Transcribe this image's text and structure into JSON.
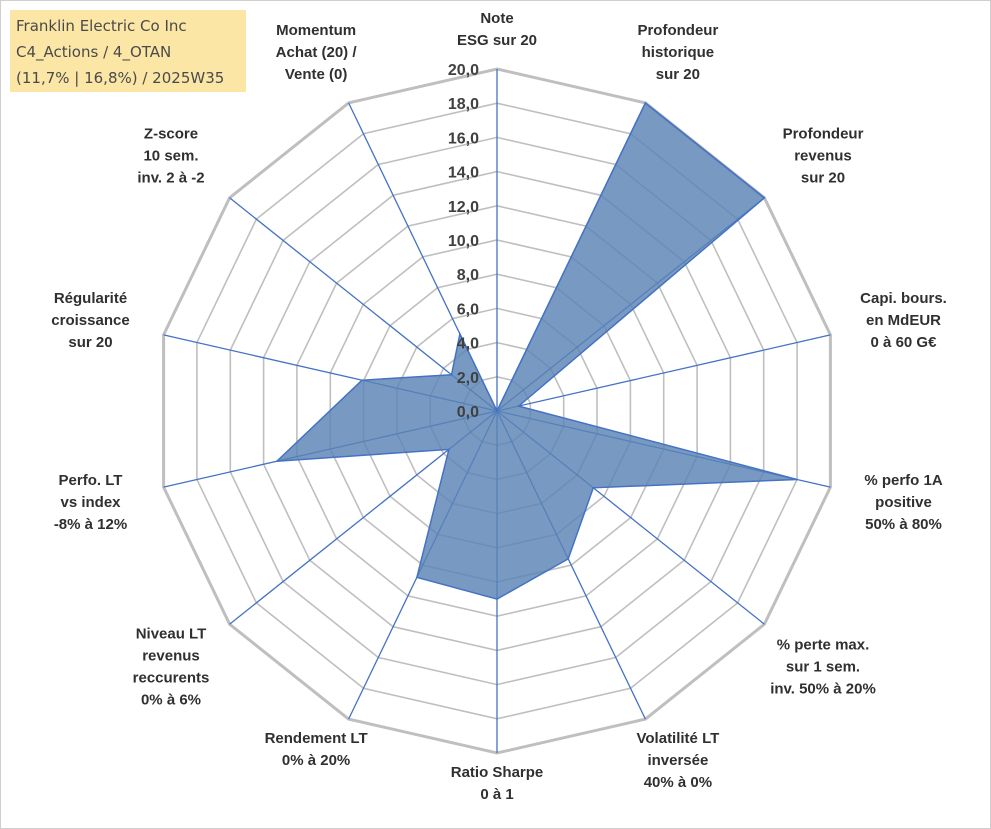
{
  "title_box": {
    "line1": "Franklin Electric Co Inc",
    "line2": "C4_Actions / 4_OTAN",
    "line3": "(11,7% | 16,8%) / 2025W35"
  },
  "chart_data": {
    "type": "radar",
    "rmin": 0,
    "rmax": 20,
    "grid": true,
    "fill_color": "#5a84b4",
    "line_color": "#4472c4",
    "grid_color": "#bfbfbf",
    "tick_labels": [
      "0,0",
      "2,0",
      "4,0",
      "6,0",
      "8,0",
      "10,0",
      "12,0",
      "14,0",
      "16,0",
      "18,0",
      "20,0"
    ],
    "axes": [
      [
        "Note",
        "ESG sur 20"
      ],
      [
        "Profondeur",
        "historique",
        "sur 20"
      ],
      [
        "Profondeur",
        "revenus",
        "sur 20"
      ],
      [
        "Capi. bours.",
        "en MdEUR",
        "0 à 60 G€"
      ],
      [
        "% perfo 1A",
        "positive",
        "50% à 80%"
      ],
      [
        "% perte max.",
        "sur 1 sem.",
        "inv. 50% à 20%"
      ],
      [
        "Volatilité LT",
        "inversée",
        "40% à 0%"
      ],
      [
        "Ratio Sharpe",
        "0 à 1"
      ],
      [
        "Rendement LT",
        "0% à 20%"
      ],
      [
        "Niveau LT",
        "revenus",
        "reccurents",
        "0% à 6%"
      ],
      [
        "Perfo. LT",
        "vs index",
        "-8% à 12%"
      ],
      [
        "Régularité",
        "croissance",
        "sur 20"
      ],
      [
        "Z-score",
        "10 sem.",
        "inv. 2 à -2"
      ],
      [
        "Momentum",
        "Achat (20) /",
        "Vente (0)"
      ]
    ],
    "values": [
      0,
      20,
      20,
      1.3,
      18,
      7.2,
      9.6,
      11,
      10.8,
      3.6,
      13.2,
      8.1,
      3.4,
      5
    ]
  }
}
